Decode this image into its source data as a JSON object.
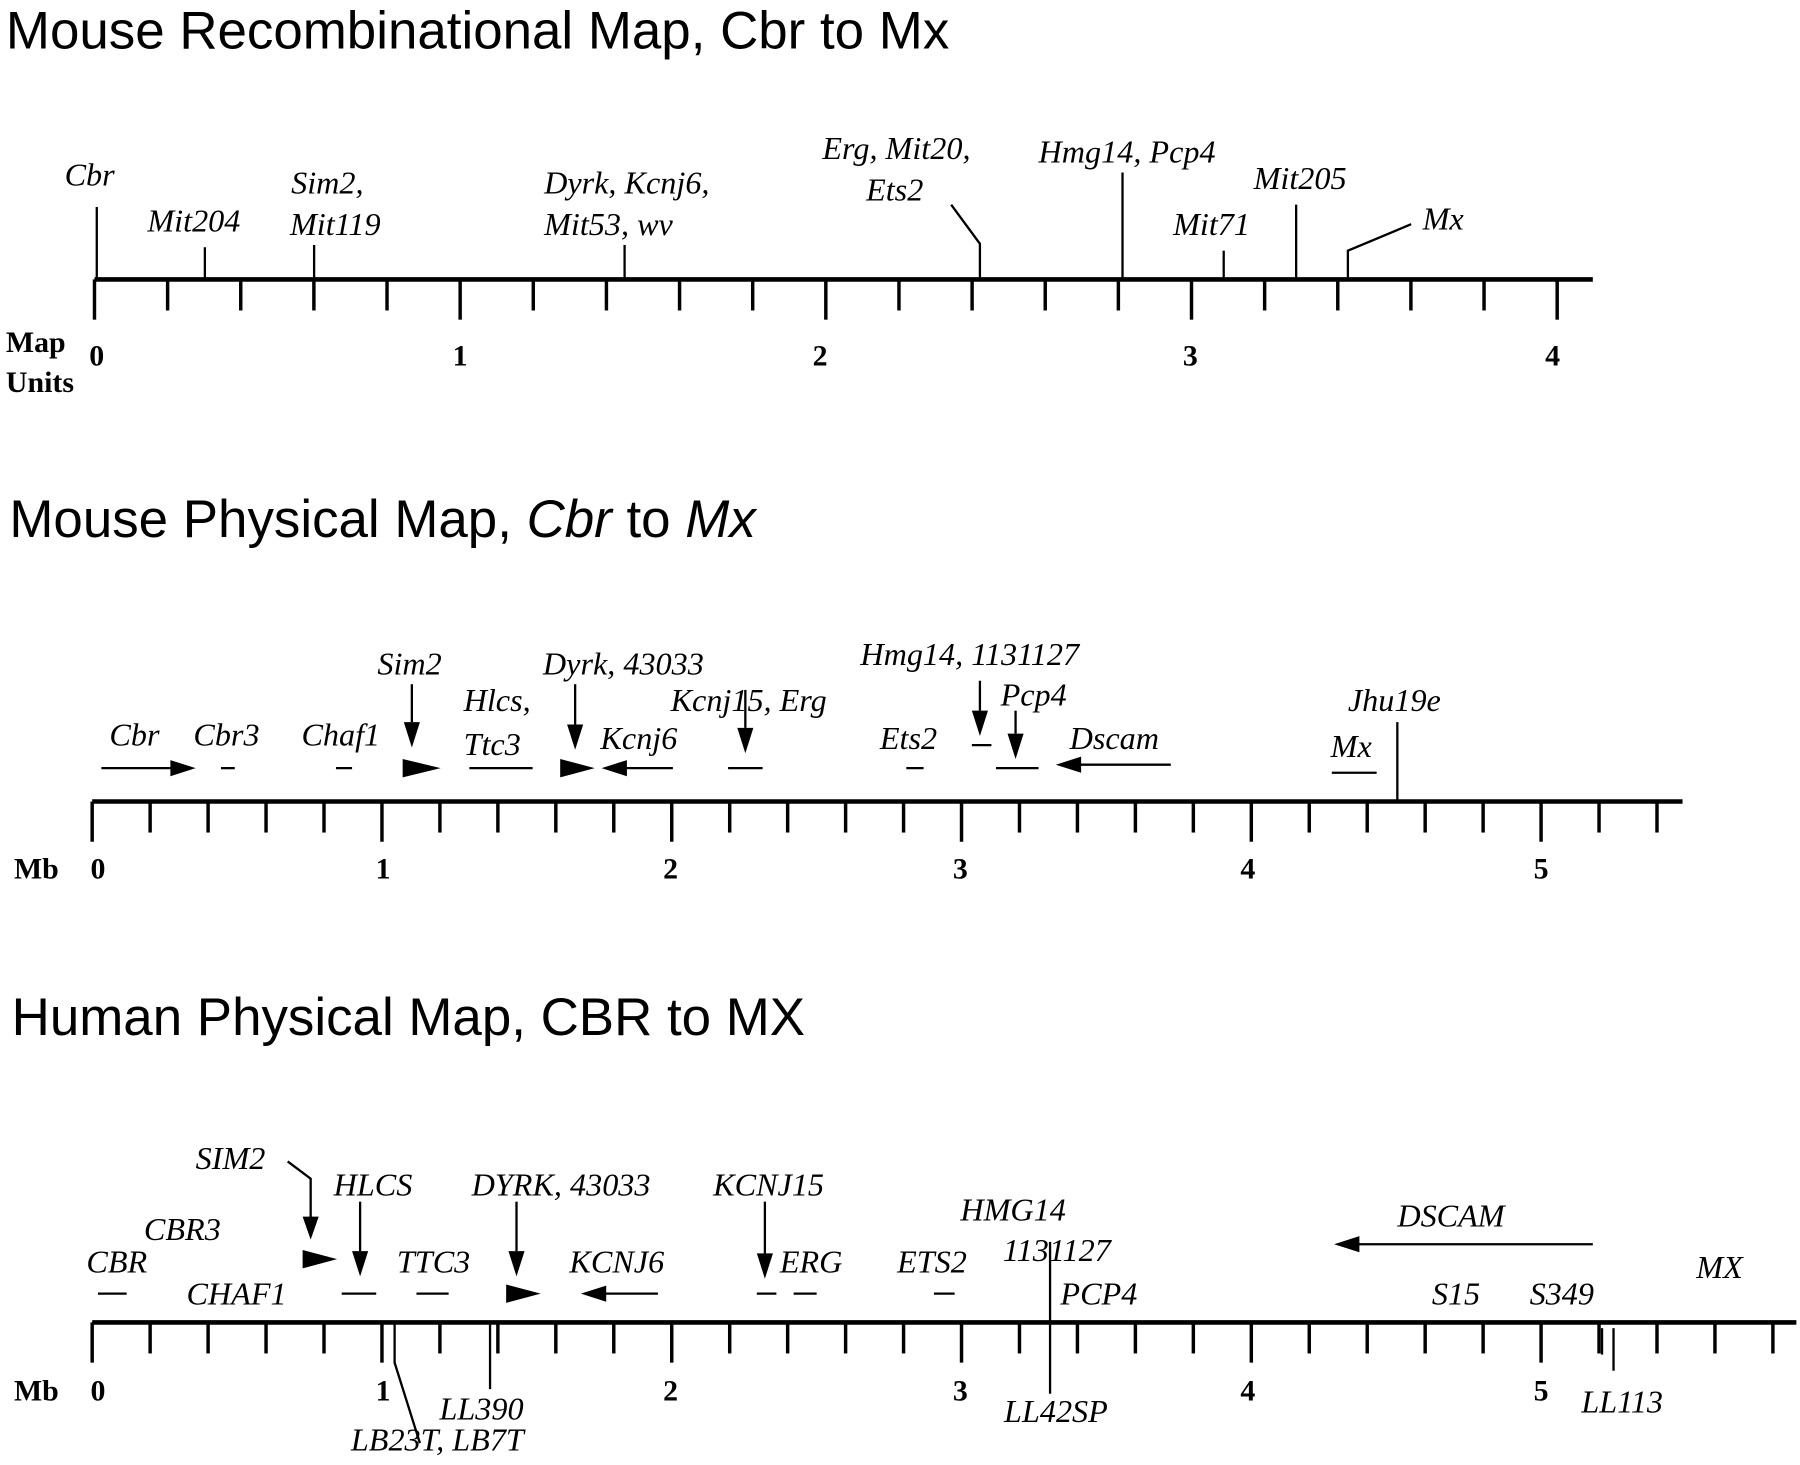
{
  "maps": [
    {
      "title": "Mouse Recombinational Map, Cbr to Mx",
      "axis_label": [
        "Map",
        "Units"
      ],
      "ticks": [
        "0",
        "1",
        "2",
        "3",
        "4"
      ],
      "labels": [
        "Cbr",
        "Mit204",
        "Sim2,",
        "Mit119",
        "Dyrk, Kcnj6,",
        "Mit53, wv",
        "Erg, Mit20,",
        "Ets2",
        "Hmg14, Pcp4",
        "Mit71",
        "Mit205",
        "Mx"
      ]
    },
    {
      "title": [
        "Mouse Physical Map, ",
        "Cbr",
        " to ",
        "Mx"
      ],
      "axis_label": [
        "Mb"
      ],
      "ticks": [
        "0",
        "1",
        "2",
        "3",
        "4",
        "5"
      ],
      "labels": [
        "Cbr",
        "Cbr3",
        "Chaf1",
        "Sim2",
        "Hlcs,",
        "Ttc3",
        "Dyrk, 43033",
        "Kcnj6",
        "Kcnj15, Erg",
        "Ets2",
        "Hmg14, 1131127",
        "Pcp4",
        "Dscam",
        "Mx",
        "Jhu19e"
      ]
    },
    {
      "title": "Human Physical Map, CBR to MX",
      "axis_label": [
        "Mb"
      ],
      "ticks": [
        "0",
        "1",
        "2",
        "3",
        "4",
        "5"
      ],
      "labels": [
        "CBR",
        "CBR3",
        "CHAF1",
        "SIM2",
        "HLCS",
        "TTC3",
        "DYRK, 43033",
        "KCNJ6",
        "KCNJ15",
        "ERG",
        "ETS2",
        "HMG14",
        "1131127",
        "PCP4",
        "DSCAM",
        "S15",
        "S349",
        "MX",
        "LB23T, LB7T",
        "LL390",
        "LL42SP",
        "LL113"
      ]
    }
  ]
}
